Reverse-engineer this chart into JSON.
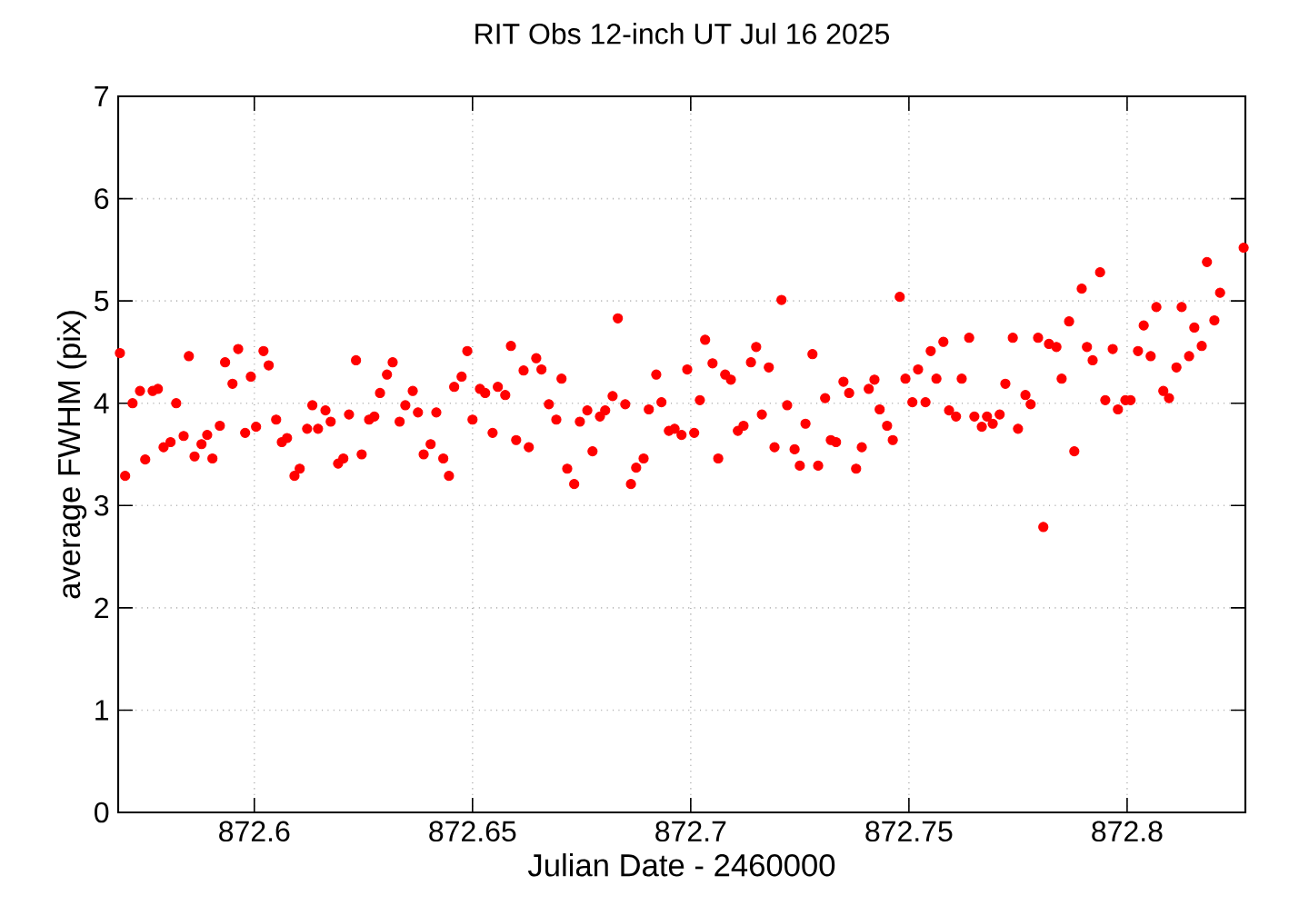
{
  "chart_data": {
    "type": "scatter",
    "title": "RIT Obs 12-inch UT Jul 16 2025",
    "xlabel": "Julian Date - 2460000",
    "ylabel": "average FWHM (pix)",
    "xlim": [
      872.5688,
      872.8271
    ],
    "ylim": [
      0,
      7
    ],
    "xticks": [
      872.6,
      872.65,
      872.7,
      872.75,
      872.8
    ],
    "yticks": [
      0,
      1,
      2,
      3,
      4,
      5,
      6,
      7
    ],
    "grid": true,
    "marker": "circle",
    "series": [
      {
        "color": "#ff0000",
        "x": [
          872.5692,
          872.5704,
          872.5721,
          872.5738,
          872.575,
          872.5767,
          872.5779,
          872.5792,
          872.5808,
          872.5821,
          872.5838,
          872.585,
          872.5863,
          872.5879,
          872.5892,
          872.5904,
          872.5921,
          872.5933,
          872.595,
          872.5963,
          872.5979,
          872.5992,
          872.6004,
          872.6021,
          872.6033,
          872.605,
          872.6063,
          872.6075,
          872.6092,
          872.6104,
          872.6121,
          872.6133,
          872.6146,
          872.6163,
          872.6175,
          872.6192,
          872.6204,
          872.6217,
          872.6233,
          872.6246,
          872.6263,
          872.6275,
          872.6288,
          872.6304,
          872.6317,
          872.6333,
          872.6346,
          872.6363,
          872.6375,
          872.6388,
          872.6404,
          872.6417,
          872.6433,
          872.6446,
          872.6458,
          872.6475,
          872.6488,
          872.65,
          872.6517,
          872.6529,
          872.6546,
          872.6558,
          872.6575,
          872.6588,
          872.66,
          872.6617,
          872.6629,
          872.6646,
          872.6658,
          872.6675,
          872.6692,
          872.6704,
          872.6717,
          872.6733,
          872.6746,
          872.6763,
          872.6775,
          872.6792,
          872.6804,
          872.6821,
          872.6833,
          872.685,
          872.6863,
          872.6875,
          872.6892,
          872.6904,
          872.6921,
          872.6933,
          872.695,
          872.6963,
          872.6979,
          872.6992,
          872.7008,
          872.7021,
          872.7033,
          872.705,
          872.7063,
          872.7079,
          872.7092,
          872.7108,
          872.7121,
          872.7138,
          872.715,
          872.7163,
          872.7179,
          872.7192,
          872.7208,
          872.7221,
          872.7238,
          872.725,
          872.7263,
          872.7279,
          872.7292,
          872.7308,
          872.7321,
          872.7333,
          872.735,
          872.7363,
          872.7379,
          872.7392,
          872.7408,
          872.7421,
          872.7433,
          872.745,
          872.7463,
          872.7479,
          872.7492,
          872.7508,
          872.7521,
          872.7538,
          872.755,
          872.7563,
          872.7579,
          872.7592,
          872.7608,
          872.7621,
          872.7638,
          872.765,
          872.7667,
          872.7679,
          872.7692,
          872.7708,
          872.7721,
          872.7738,
          872.775,
          872.7767,
          872.7779,
          872.7796,
          872.7808,
          872.7821,
          872.7838,
          872.785,
          872.7867,
          872.7879,
          872.7896,
          872.7908,
          872.7921,
          872.7938,
          872.795,
          872.7967,
          872.7979,
          872.7996,
          872.8008,
          872.8025,
          872.8038,
          872.8054,
          872.8067,
          872.8083,
          872.8096,
          872.8113,
          872.8125,
          872.8142,
          872.8154,
          872.8171,
          872.8183,
          872.82,
          872.8213,
          872.8267
        ],
        "values": [
          4.49,
          3.29,
          4.0,
          4.12,
          3.45,
          4.12,
          4.14,
          3.57,
          3.62,
          4.0,
          3.68,
          4.46,
          3.48,
          3.6,
          3.69,
          3.46,
          3.78,
          4.4,
          4.19,
          4.53,
          3.71,
          4.26,
          3.77,
          4.51,
          4.37,
          3.84,
          3.62,
          3.66,
          3.29,
          3.36,
          3.75,
          3.98,
          3.75,
          3.93,
          3.82,
          3.41,
          3.46,
          3.89,
          4.42,
          3.5,
          3.84,
          3.87,
          4.1,
          4.28,
          4.4,
          3.82,
          3.98,
          4.12,
          3.91,
          3.5,
          3.6,
          3.91,
          3.46,
          3.29,
          4.16,
          4.26,
          4.51,
          3.84,
          4.14,
          4.1,
          3.71,
          4.16,
          4.08,
          4.56,
          3.64,
          4.32,
          3.57,
          4.44,
          4.33,
          3.99,
          3.84,
          4.24,
          3.36,
          3.21,
          3.82,
          3.93,
          3.53,
          3.87,
          3.93,
          4.07,
          4.83,
          3.99,
          3.21,
          3.37,
          3.46,
          3.94,
          4.28,
          4.01,
          3.73,
          3.75,
          3.69,
          4.33,
          3.71,
          4.03,
          4.62,
          4.39,
          3.46,
          4.28,
          4.23,
          3.73,
          3.78,
          4.4,
          4.55,
          3.89,
          4.35,
          3.57,
          5.01,
          3.98,
          3.55,
          3.39,
          3.8,
          4.48,
          3.39,
          4.05,
          3.64,
          3.62,
          4.21,
          4.1,
          3.36,
          3.57,
          4.14,
          4.23,
          3.94,
          3.78,
          3.64,
          5.04,
          4.24,
          4.01,
          4.33,
          4.01,
          4.51,
          4.24,
          4.6,
          3.93,
          3.87,
          4.24,
          4.64,
          3.87,
          3.77,
          3.87,
          3.8,
          3.89,
          4.19,
          4.64,
          3.75,
          4.08,
          3.99,
          4.64,
          2.79,
          4.58,
          4.55,
          4.24,
          4.8,
          3.53,
          5.12,
          4.55,
          4.42,
          5.28,
          4.03,
          4.53,
          3.94,
          4.03,
          4.03,
          4.51,
          4.76,
          4.46,
          4.94,
          4.12,
          4.05,
          4.35,
          4.94,
          4.46,
          4.74,
          4.56,
          5.38,
          4.81,
          5.08,
          5.52
        ]
      }
    ]
  }
}
